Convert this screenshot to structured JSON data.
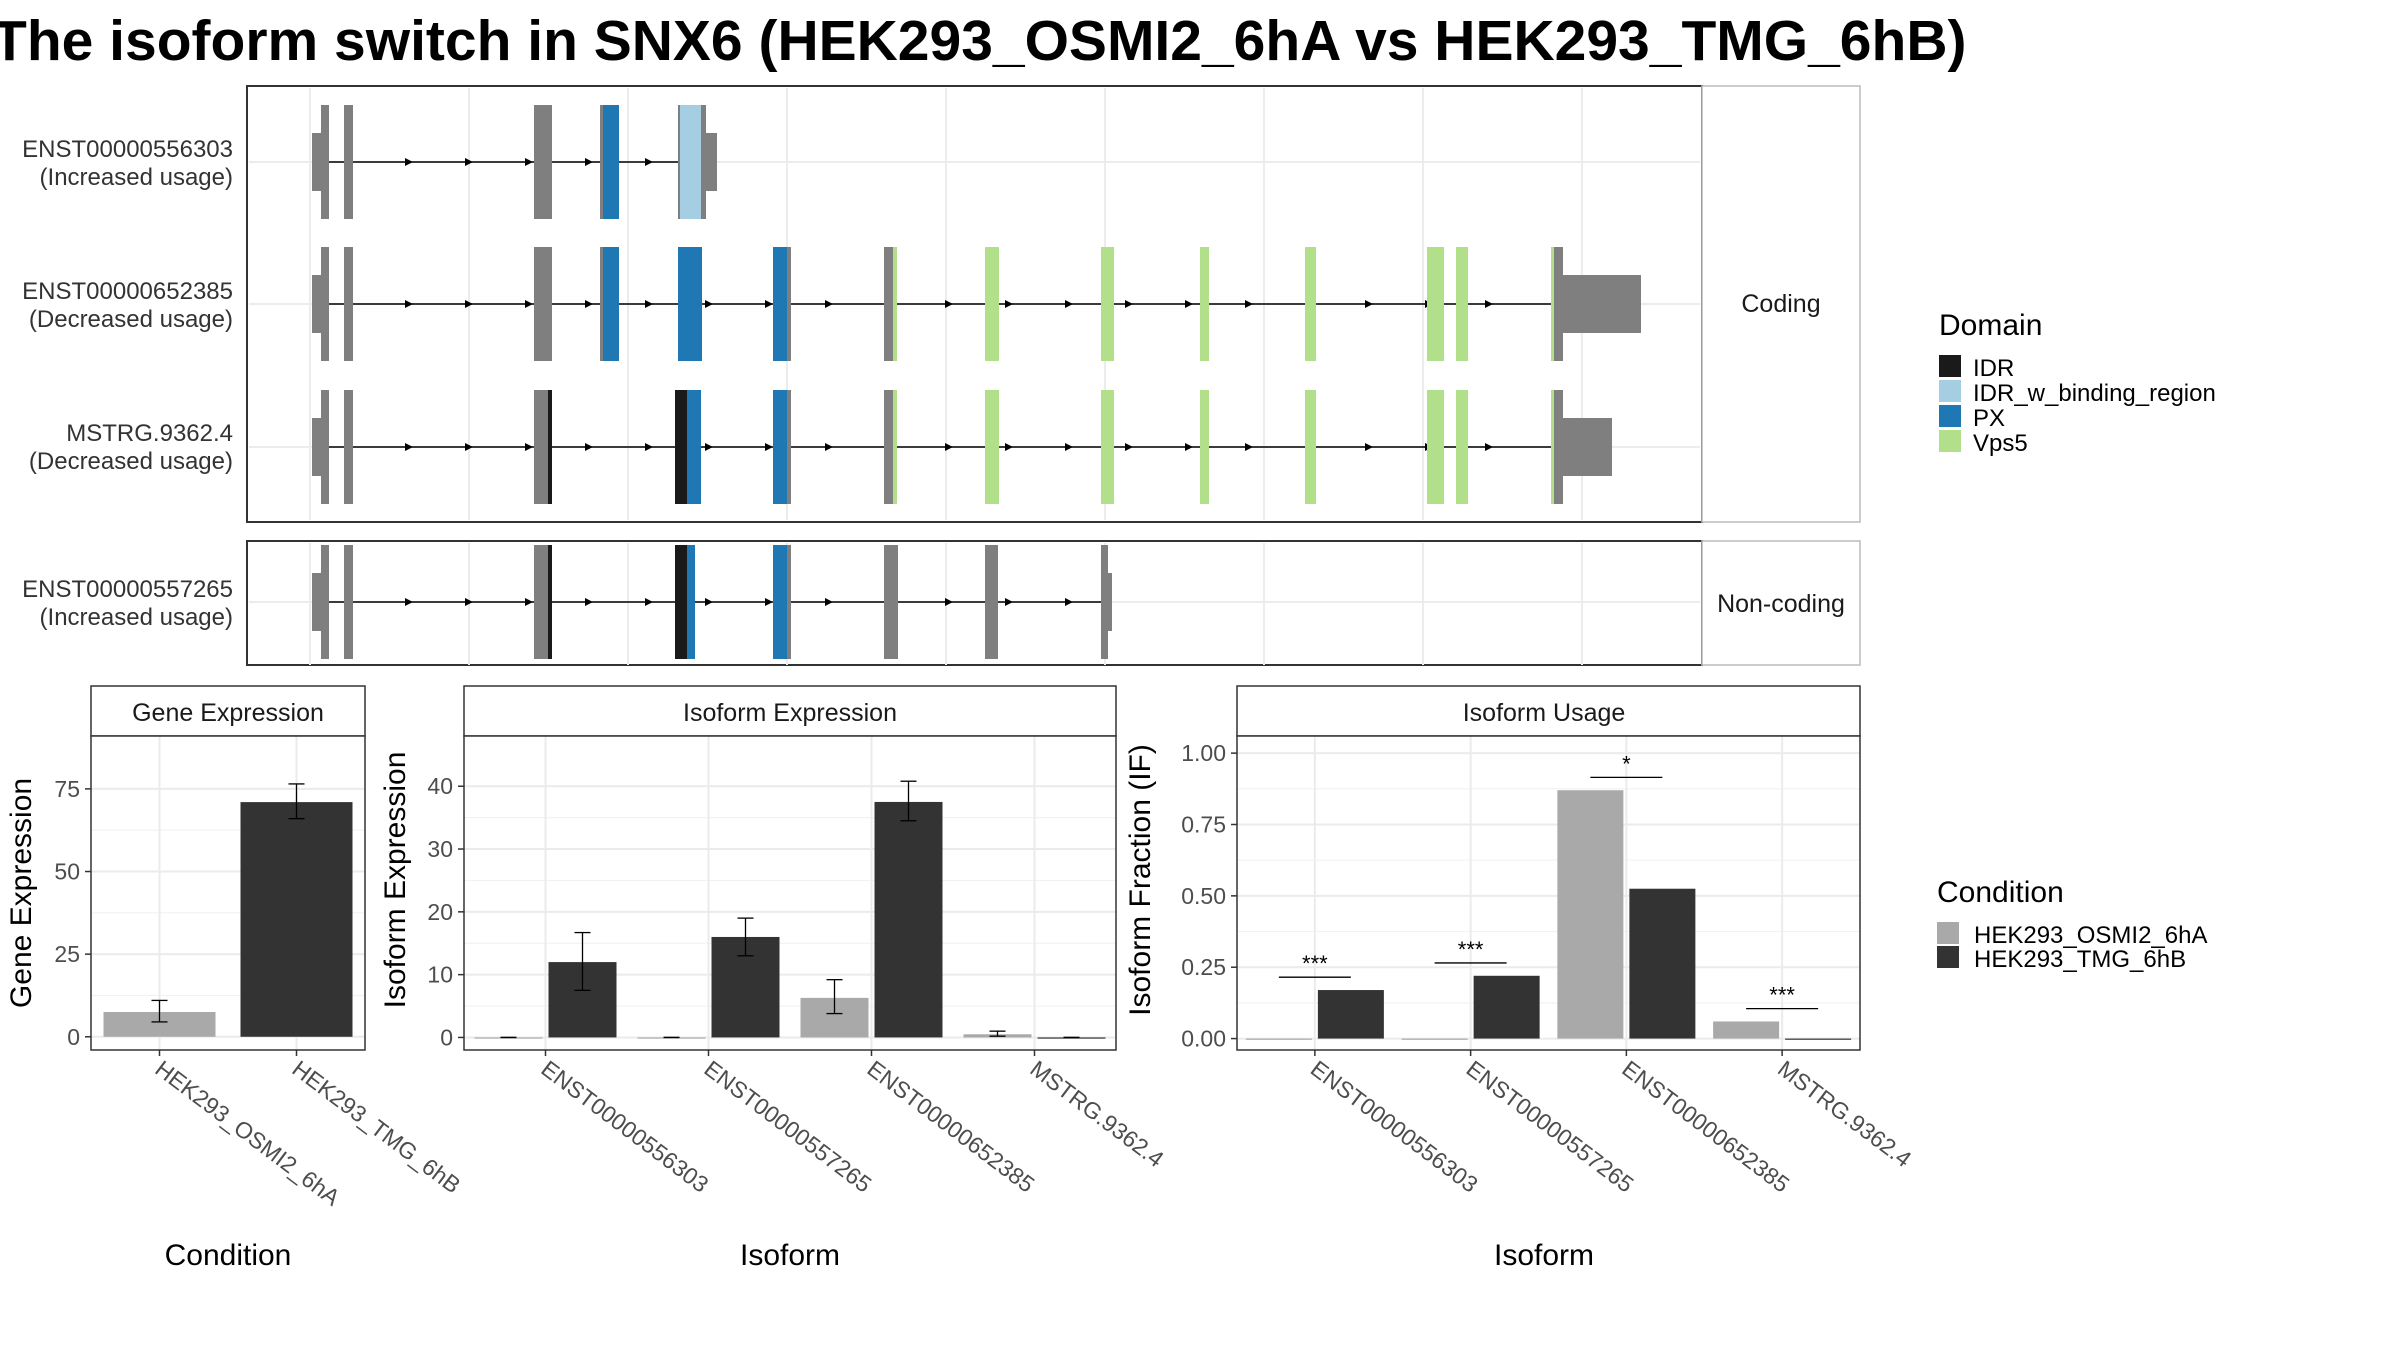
{
  "title": "The isoform switch in SNX6 (HEK293_OSMI2_6hA vs HEK293_TMG_6hB)",
  "colors": {
    "IDR": "#1a1a1a",
    "IDR_w_binding_region": "#a6cee3",
    "PX": "#1f78b4",
    "Vps5": "#b2df8a",
    "exon": "#7f7f7f",
    "cond1": "#a9a9a9",
    "cond2": "#333333"
  },
  "isoform_panel": {
    "facets": [
      {
        "label": "Coding",
        "isoforms": [
          {
            "id": "ENST00000556303",
            "usage": "(Increased usage)"
          },
          {
            "id": "ENST00000652385",
            "usage": "(Decreased usage)"
          },
          {
            "id": "MSTRG.9362.4",
            "usage": "(Decreased usage)"
          }
        ]
      },
      {
        "label": "Non-coding",
        "isoforms": [
          {
            "id": "ENST00000557265",
            "usage": "(Increased usage)"
          }
        ]
      }
    ],
    "domain_legend": {
      "title": "Domain",
      "items": [
        {
          "name": "IDR",
          "color": "#1a1a1a"
        },
        {
          "name": "IDR_w_binding_region",
          "color": "#a6cee3"
        },
        {
          "name": "PX",
          "color": "#1f78b4"
        },
        {
          "name": "Vps5",
          "color": "#b2df8a"
        }
      ]
    }
  },
  "condition_legend": {
    "title": "Condition",
    "items": [
      {
        "name": "HEK293_OSMI2_6hA",
        "color": "#a9a9a9"
      },
      {
        "name": "HEK293_TMG_6hB",
        "color": "#333333"
      }
    ]
  },
  "chart_data": [
    {
      "type": "bar",
      "strip": "Gene Expression",
      "xlabel": "Condition",
      "ylabel": "Gene Expression",
      "categories": [
        "HEK293_OSMI2_6hA",
        "HEK293_TMG_6hB"
      ],
      "yticks": [
        0,
        25,
        50,
        75
      ],
      "ylim": [
        -4,
        91
      ],
      "bars": [
        {
          "category": "HEK293_OSMI2_6hA",
          "condition": "HEK293_OSMI2_6hA",
          "value": 7.5,
          "err_low": 4.5,
          "err_high": 11
        },
        {
          "category": "HEK293_TMG_6hB",
          "condition": "HEK293_TMG_6hB",
          "value": 71,
          "err_low": 66,
          "err_high": 76.5
        }
      ]
    },
    {
      "type": "bar",
      "strip": "Isoform Expression",
      "xlabel": "Isoform",
      "ylabel": "Isoform Expression",
      "categories": [
        "ENST00000556303",
        "ENST00000557265",
        "ENST00000652385",
        "MSTRG.9362.4"
      ],
      "yticks": [
        0,
        10,
        20,
        30,
        40
      ],
      "ylim": [
        -2,
        48
      ],
      "series": [
        {
          "name": "HEK293_OSMI2_6hA",
          "values": [
            0,
            0,
            6.3,
            0.5
          ],
          "err_low": [
            0,
            0,
            3.8,
            0.2
          ],
          "err_high": [
            0,
            0,
            9.2,
            1.0
          ]
        },
        {
          "name": "HEK293_TMG_6hB",
          "values": [
            12,
            16,
            37.5,
            0
          ],
          "err_low": [
            7.5,
            13,
            34.5,
            0
          ],
          "err_high": [
            16.7,
            19,
            40.8,
            0
          ]
        }
      ]
    },
    {
      "type": "bar",
      "strip": "Isoform Usage",
      "xlabel": "Isoform",
      "ylabel": "Isoform Fraction (IF)",
      "categories": [
        "ENST00000556303",
        "ENST00000557265",
        "ENST00000652385",
        "MSTRG.9362.4"
      ],
      "yticks": [
        "0.00",
        "0.25",
        "0.50",
        "0.75",
        "1.00"
      ],
      "ylim": [
        -0.04,
        1.06
      ],
      "series": [
        {
          "name": "HEK293_OSMI2_6hA",
          "values": [
            0,
            0,
            0.87,
            0.06
          ]
        },
        {
          "name": "HEK293_TMG_6hB",
          "values": [
            0.17,
            0.22,
            0.525,
            0
          ]
        }
      ],
      "significance": [
        {
          "category": "ENST00000556303",
          "label": "***",
          "y": 0.215
        },
        {
          "category": "ENST00000557265",
          "label": "***",
          "y": 0.265
        },
        {
          "category": "ENST00000652385",
          "label": "*",
          "y": 0.915
        },
        {
          "category": "MSTRG.9362.4",
          "label": "***",
          "y": 0.105
        }
      ]
    }
  ]
}
